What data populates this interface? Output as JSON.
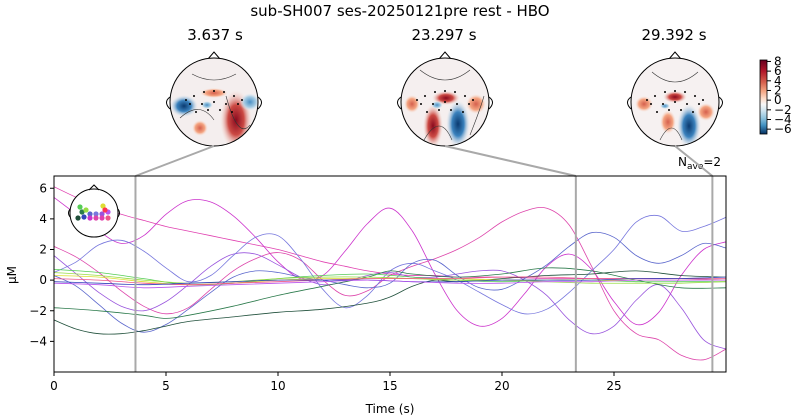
{
  "chart_data": {
    "type": "line",
    "title": "sub-SH007 ses-20250121pre rest - HBO",
    "xlabel": "Time (s)",
    "ylabel": "µM",
    "xlim": [
      0,
      30
    ],
    "ylim": [
      -6,
      6.8
    ],
    "xticks": [
      0,
      5,
      10,
      15,
      20,
      25
    ],
    "yticks": [
      -4,
      -2,
      0,
      2,
      4,
      6
    ],
    "nave_label": "N",
    "nave_sub": "ave",
    "nave_value": "=2",
    "topomap_times": [
      {
        "time": 3.637,
        "label": "3.637 s"
      },
      {
        "time": 23.297,
        "label": "23.297 s"
      },
      {
        "time": 29.392,
        "label": "29.392 s"
      }
    ],
    "colorbar": {
      "ticks": [
        8,
        6,
        4,
        2,
        0,
        -2,
        -4,
        -6
      ],
      "range": [
        -7,
        8.3
      ],
      "cmap": "RdBu_r"
    },
    "series": [
      {
        "color": "#e040b0",
        "points": [
          [
            0,
            6.1
          ],
          [
            1,
            5.4
          ],
          [
            2,
            4.8
          ],
          [
            3,
            4.3
          ],
          [
            4,
            3.9
          ],
          [
            5,
            3.5
          ],
          [
            6,
            3.2
          ],
          [
            7,
            2.9
          ],
          [
            8,
            2.6
          ],
          [
            9,
            2.3
          ],
          [
            10,
            2.0
          ],
          [
            11,
            1.6
          ],
          [
            12,
            1.2
          ],
          [
            13,
            0.9
          ],
          [
            14,
            0.6
          ],
          [
            15,
            0.4
          ],
          [
            16,
            0.3
          ],
          [
            17,
            0.3
          ],
          [
            18,
            0.2
          ],
          [
            19,
            0.2
          ],
          [
            20,
            0.2
          ],
          [
            22,
            0.1
          ],
          [
            24,
            0.1
          ],
          [
            26,
            0.1
          ],
          [
            28,
            0.1
          ],
          [
            30,
            0.0
          ]
        ]
      },
      {
        "color": "#cc33cc",
        "points": [
          [
            0,
            5.4
          ],
          [
            1,
            4.3
          ],
          [
            2,
            3.2
          ],
          [
            3,
            2.4
          ],
          [
            4,
            2.9
          ],
          [
            5,
            4.3
          ],
          [
            6,
            5.2
          ],
          [
            7,
            5.1
          ],
          [
            8,
            4.2
          ],
          [
            9,
            2.8
          ],
          [
            10,
            1.2
          ],
          [
            11,
            0.1
          ],
          [
            12,
            0.3
          ],
          [
            13,
            1.9
          ],
          [
            14,
            3.7
          ],
          [
            15,
            4.7
          ],
          [
            16,
            3.2
          ],
          [
            17,
            0.4
          ],
          [
            18,
            -2.0
          ],
          [
            19,
            -3.0
          ],
          [
            20,
            -2.5
          ],
          [
            21,
            -0.9
          ],
          [
            22,
            0.9
          ],
          [
            23,
            1.7
          ],
          [
            24,
            0.7
          ],
          [
            25,
            -1.4
          ],
          [
            26,
            -2.9
          ],
          [
            27,
            -2.1
          ],
          [
            28,
            0.3
          ],
          [
            29,
            2.0
          ],
          [
            30,
            2.5
          ]
        ]
      },
      {
        "color": "#dd44aa",
        "points": [
          [
            0,
            2.2
          ],
          [
            1,
            1.5
          ],
          [
            2,
            0.5
          ],
          [
            3,
            -0.7
          ],
          [
            4,
            -1.7
          ],
          [
            5,
            -2.2
          ],
          [
            6,
            -1.8
          ],
          [
            7,
            -0.6
          ],
          [
            8,
            0.6
          ],
          [
            9,
            1.4
          ],
          [
            10,
            1.8
          ],
          [
            11,
            1.3
          ],
          [
            12,
            0.0
          ],
          [
            13,
            -1.0
          ],
          [
            14,
            -0.7
          ],
          [
            15,
            0.3
          ],
          [
            16,
            0.9
          ],
          [
            17,
            1.4
          ],
          [
            18,
            2.0
          ],
          [
            19,
            2.8
          ],
          [
            20,
            3.8
          ],
          [
            21,
            4.5
          ],
          [
            22,
            4.7
          ],
          [
            23,
            3.6
          ],
          [
            24,
            0.9
          ],
          [
            25,
            -2.0
          ],
          [
            26,
            -3.5
          ],
          [
            27,
            -3.9
          ],
          [
            28,
            -4.9
          ],
          [
            29,
            -5.2
          ],
          [
            30,
            -4.5
          ]
        ]
      },
      {
        "color": "#9955dd",
        "points": [
          [
            0,
            1.6
          ],
          [
            1,
            0.4
          ],
          [
            2,
            -0.8
          ],
          [
            3,
            -1.7
          ],
          [
            4,
            -2.0
          ],
          [
            5,
            -1.4
          ],
          [
            6,
            -0.3
          ],
          [
            7,
            0.9
          ],
          [
            8,
            1.7
          ],
          [
            9,
            1.7
          ],
          [
            10,
            1.0
          ],
          [
            11,
            0.2
          ],
          [
            12,
            -0.3
          ],
          [
            13,
            -0.1
          ],
          [
            14,
            0.3
          ],
          [
            15,
            0.5
          ],
          [
            16,
            0.2
          ],
          [
            17,
            0.2
          ],
          [
            18,
            0.4
          ],
          [
            19,
            0.6
          ],
          [
            20,
            0.6
          ],
          [
            21,
            0.0
          ],
          [
            22,
            -1.0
          ],
          [
            23,
            -2.6
          ],
          [
            24,
            -3.5
          ],
          [
            25,
            -3.0
          ],
          [
            26,
            -1.3
          ],
          [
            27,
            -0.3
          ],
          [
            28,
            -1.8
          ],
          [
            29,
            -3.9
          ],
          [
            30,
            -4.5
          ]
        ]
      },
      {
        "color": "#7777dd",
        "points": [
          [
            0,
            0.5
          ],
          [
            1,
            1.2
          ],
          [
            2,
            2.3
          ],
          [
            3,
            2.6
          ],
          [
            4,
            1.9
          ],
          [
            5,
            0.8
          ],
          [
            6,
            -0.1
          ],
          [
            7,
            0.3
          ],
          [
            8,
            1.6
          ],
          [
            9,
            2.8
          ],
          [
            10,
            2.9
          ],
          [
            11,
            1.4
          ],
          [
            12,
            -0.6
          ],
          [
            13,
            -1.8
          ],
          [
            14,
            -1.0
          ],
          [
            15,
            0.6
          ],
          [
            16,
            1.1
          ],
          [
            17,
            0.6
          ],
          [
            18,
            0.0
          ],
          [
            19,
            -0.8
          ],
          [
            20,
            -1.6
          ],
          [
            21,
            -2.2
          ],
          [
            22,
            -1.9
          ],
          [
            23,
            -0.8
          ],
          [
            24,
            0.6
          ],
          [
            25,
            2.0
          ],
          [
            26,
            3.8
          ],
          [
            27,
            4.2
          ],
          [
            28,
            3.2
          ],
          [
            29,
            3.5
          ],
          [
            30,
            4.1
          ]
        ]
      },
      {
        "color": "#5a66cc",
        "points": [
          [
            0,
            0.3
          ],
          [
            1,
            -0.4
          ],
          [
            2,
            -1.6
          ],
          [
            3,
            -2.8
          ],
          [
            4,
            -3.4
          ],
          [
            5,
            -2.9
          ],
          [
            6,
            -1.9
          ],
          [
            7,
            -0.8
          ],
          [
            8,
            0.2
          ],
          [
            9,
            0.6
          ],
          [
            10,
            0.5
          ],
          [
            11,
            0.2
          ],
          [
            12,
            0.0
          ],
          [
            13,
            -0.3
          ],
          [
            14,
            -0.5
          ],
          [
            15,
            -0.2
          ],
          [
            16,
            1.1
          ],
          [
            17,
            1.3
          ],
          [
            18,
            0.3
          ],
          [
            19,
            -0.5
          ],
          [
            20,
            -0.6
          ],
          [
            21,
            0.1
          ],
          [
            22,
            1.0
          ],
          [
            23,
            2.2
          ],
          [
            24,
            3.1
          ],
          [
            25,
            2.8
          ],
          [
            26,
            1.6
          ],
          [
            27,
            1.1
          ],
          [
            28,
            1.6
          ],
          [
            29,
            2.4
          ],
          [
            30,
            2.1
          ]
        ]
      },
      {
        "color": "#2b7a4b",
        "points": [
          [
            0,
            -1.8
          ],
          [
            2,
            -2.0
          ],
          [
            4,
            -2.3
          ],
          [
            5,
            -2.5
          ],
          [
            6,
            -2.3
          ],
          [
            8,
            -1.7
          ],
          [
            10,
            -1.0
          ],
          [
            12,
            -0.4
          ],
          [
            14,
            0.2
          ],
          [
            15,
            0.6
          ],
          [
            16,
            0.4
          ],
          [
            18,
            0.2
          ],
          [
            20,
            0.4
          ],
          [
            22,
            0.8
          ],
          [
            24,
            0.6
          ],
          [
            26,
            0.0
          ],
          [
            28,
            -0.5
          ],
          [
            30,
            -0.5
          ]
        ]
      },
      {
        "color": "#1f4f3a",
        "points": [
          [
            0,
            -2.6
          ],
          [
            1,
            -3.2
          ],
          [
            2,
            -3.5
          ],
          [
            3,
            -3.5
          ],
          [
            4,
            -3.3
          ],
          [
            5,
            -3.0
          ],
          [
            6,
            -2.7
          ],
          [
            8,
            -2.4
          ],
          [
            10,
            -2.1
          ],
          [
            12,
            -1.9
          ],
          [
            14,
            -1.5
          ],
          [
            15,
            -1.1
          ],
          [
            16,
            -0.4
          ],
          [
            17,
            0.0
          ],
          [
            18,
            -0.1
          ],
          [
            20,
            0.1
          ],
          [
            22,
            0.3
          ],
          [
            24,
            0.4
          ],
          [
            26,
            0.6
          ],
          [
            28,
            0.3
          ],
          [
            30,
            0.2
          ]
        ]
      },
      {
        "color": "#55cc55",
        "points": [
          [
            0,
            0.7
          ],
          [
            2,
            0.5
          ],
          [
            4,
            0.1
          ],
          [
            6,
            -0.3
          ],
          [
            8,
            -0.2
          ],
          [
            10,
            0.1
          ],
          [
            12,
            0.3
          ],
          [
            14,
            0.4
          ],
          [
            16,
            0.2
          ],
          [
            18,
            0.0
          ],
          [
            20,
            -0.1
          ],
          [
            22,
            0.0
          ],
          [
            24,
            0.0
          ],
          [
            26,
            -0.1
          ],
          [
            28,
            -0.1
          ],
          [
            30,
            -0.1
          ]
        ]
      },
      {
        "color": "#99dd44",
        "points": [
          [
            0,
            0.5
          ],
          [
            2,
            0.3
          ],
          [
            4,
            0.0
          ],
          [
            6,
            -0.2
          ],
          [
            8,
            -0.1
          ],
          [
            10,
            0.1
          ],
          [
            12,
            0.2
          ],
          [
            14,
            0.2
          ],
          [
            16,
            0.1
          ],
          [
            18,
            0.0
          ],
          [
            20,
            0.0
          ],
          [
            22,
            -0.1
          ],
          [
            24,
            -0.2
          ],
          [
            26,
            -0.2
          ],
          [
            28,
            -0.2
          ],
          [
            30,
            -0.1
          ]
        ]
      },
      {
        "color": "#dddd33",
        "points": [
          [
            0,
            0.3
          ],
          [
            2,
            0.2
          ],
          [
            4,
            -0.1
          ],
          [
            6,
            -0.3
          ],
          [
            8,
            -0.2
          ],
          [
            10,
            0.0
          ],
          [
            12,
            0.1
          ],
          [
            14,
            0.1
          ],
          [
            16,
            0.1
          ],
          [
            18,
            0.1
          ],
          [
            20,
            0.0
          ],
          [
            22,
            0.0
          ],
          [
            24,
            0.0
          ],
          [
            26,
            0.0
          ],
          [
            28,
            0.0
          ],
          [
            30,
            0.0
          ]
        ]
      },
      {
        "color": "#ee5588",
        "points": [
          [
            0,
            0.1
          ],
          [
            2,
            0.0
          ],
          [
            4,
            -0.2
          ],
          [
            6,
            -0.3
          ],
          [
            8,
            -0.2
          ],
          [
            10,
            -0.1
          ],
          [
            12,
            0.0
          ],
          [
            14,
            0.1
          ],
          [
            16,
            0.1
          ],
          [
            18,
            0.1
          ],
          [
            20,
            0.2
          ],
          [
            22,
            0.2
          ],
          [
            24,
            0.1
          ],
          [
            26,
            0.1
          ],
          [
            28,
            0.1
          ],
          [
            30,
            0.1
          ]
        ]
      },
      {
        "color": "#3344bb",
        "points": [
          [
            0,
            -0.1
          ],
          [
            2,
            -0.2
          ],
          [
            4,
            -0.3
          ],
          [
            6,
            -0.2
          ],
          [
            8,
            -0.1
          ],
          [
            10,
            0.0
          ],
          [
            12,
            0.0
          ],
          [
            14,
            0.0
          ],
          [
            16,
            -0.1
          ],
          [
            18,
            -0.1
          ],
          [
            20,
            0.0
          ],
          [
            22,
            0.0
          ],
          [
            24,
            0.0
          ],
          [
            26,
            0.1
          ],
          [
            28,
            0.1
          ],
          [
            30,
            0.2
          ]
        ]
      },
      {
        "color": "#bb55ee",
        "points": [
          [
            0,
            -0.2
          ],
          [
            2,
            -0.3
          ],
          [
            4,
            -0.5
          ],
          [
            6,
            -0.4
          ],
          [
            8,
            -0.3
          ],
          [
            10,
            -0.2
          ],
          [
            12,
            -0.1
          ],
          [
            14,
            0.0
          ],
          [
            16,
            -0.1
          ],
          [
            18,
            -0.2
          ],
          [
            20,
            -0.2
          ],
          [
            22,
            -0.1
          ],
          [
            24,
            -0.1
          ],
          [
            26,
            0.0
          ],
          [
            28,
            0.0
          ],
          [
            30,
            0.0
          ]
        ]
      }
    ]
  }
}
